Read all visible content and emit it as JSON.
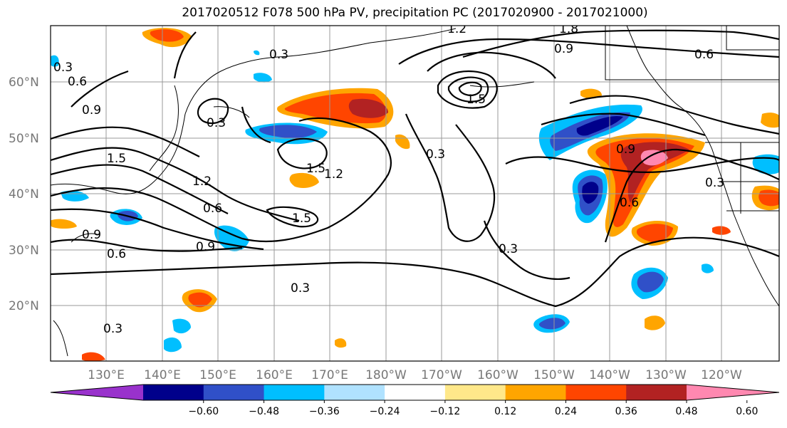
{
  "title": "2017020512 F078 500 hPa PV, precipitation PC (2017020900 - 2017021000)",
  "lat_labels": [
    "60°N",
    "50°N",
    "40°N",
    "30°N",
    "20°N"
  ],
  "lon_labels": [
    "130°E",
    "140°E",
    "150°E",
    "160°E",
    "170°E",
    "180°W",
    "170°W",
    "160°W",
    "150°W",
    "140°W",
    "130°W",
    "120°W"
  ],
  "colorbar": {
    "ticks": [
      "−0.60",
      "−0.48",
      "−0.36",
      "−0.24",
      "−0.12",
      "0.12",
      "0.24",
      "0.36",
      "0.48",
      "0.60"
    ],
    "colors": [
      "#9932cc",
      "#00008b",
      "#3050c8",
      "#00bfff",
      "#b0e2ff",
      "#ffffff",
      "#ffe88a",
      "#ffa500",
      "#ff4500",
      "#b22222",
      "#ff88b0"
    ]
  },
  "contour_labels": [
    "0.3",
    "0.6",
    "0.9",
    "1.2",
    "1.5",
    "1.8"
  ]
}
